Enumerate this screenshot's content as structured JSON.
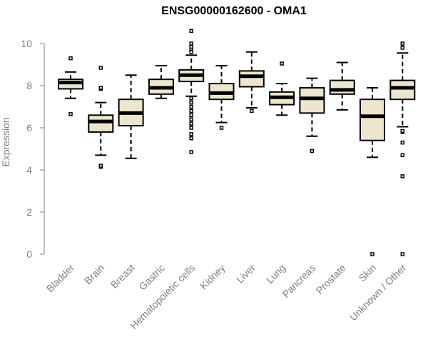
{
  "chart_data": {
    "type": "boxplot",
    "title": "ENSG00000162600 - OMA1",
    "ylabel": "Expression",
    "xlabel": "",
    "ylim": [
      0,
      10
    ],
    "yticks": [
      0,
      2,
      4,
      6,
      8,
      10
    ],
    "grid": false,
    "legend": "none",
    "colors": {
      "box_fill": "#ede6cf",
      "stroke": "#000000",
      "axis": "#808080"
    },
    "categories": [
      "Bladder",
      "Brain",
      "Breast",
      "Gastric",
      "Hematopoietic cells",
      "Kidney",
      "Liver",
      "Lung",
      "Pancreas",
      "Prostate",
      "Skin",
      "Unknown / Other"
    ],
    "boxes": [
      {
        "category": "Bladder",
        "whisker_low": 7.4,
        "q1": 7.85,
        "median": 8.15,
        "q3": 8.3,
        "whisker_high": 8.65,
        "outliers": [
          6.65,
          9.3
        ]
      },
      {
        "category": "Brain",
        "whisker_low": 4.7,
        "q1": 5.8,
        "median": 6.3,
        "q3": 6.6,
        "whisker_high": 7.2,
        "outliers": [
          4.15,
          4.2,
          7.85,
          7.9,
          8.85
        ]
      },
      {
        "category": "Breast",
        "whisker_low": 4.55,
        "q1": 6.1,
        "median": 6.7,
        "q3": 7.35,
        "whisker_high": 8.5,
        "outliers": []
      },
      {
        "category": "Gastric",
        "whisker_low": 7.4,
        "q1": 7.6,
        "median": 7.9,
        "q3": 8.3,
        "whisker_high": 8.95,
        "outliers": []
      },
      {
        "category": "Hematopoietic cells",
        "whisker_low": 7.5,
        "q1": 8.2,
        "median": 8.5,
        "q3": 8.75,
        "whisker_high": 9.45,
        "outliers": [
          4.85,
          5.5,
          5.7,
          6.0,
          6.2,
          6.4,
          6.6,
          6.8,
          7.0,
          7.2,
          7.4,
          9.6,
          9.75,
          9.85,
          10.0,
          10.6
        ]
      },
      {
        "category": "Kidney",
        "whisker_low": 6.25,
        "q1": 7.35,
        "median": 7.65,
        "q3": 8.1,
        "whisker_high": 8.95,
        "outliers": [
          6.0
        ]
      },
      {
        "category": "Liver",
        "whisker_low": 6.95,
        "q1": 7.95,
        "median": 8.45,
        "q3": 8.7,
        "whisker_high": 9.6,
        "outliers": [
          6.8
        ]
      },
      {
        "category": "Lung",
        "whisker_low": 6.6,
        "q1": 7.1,
        "median": 7.45,
        "q3": 7.7,
        "whisker_high": 8.1,
        "outliers": [
          9.05
        ]
      },
      {
        "category": "Pancreas",
        "whisker_low": 5.6,
        "q1": 6.7,
        "median": 7.4,
        "q3": 7.9,
        "whisker_high": 8.35,
        "outliers": [
          4.9
        ]
      },
      {
        "category": "Prostate",
        "whisker_low": 6.85,
        "q1": 7.6,
        "median": 7.8,
        "q3": 8.25,
        "whisker_high": 9.1,
        "outliers": []
      },
      {
        "category": "Skin",
        "whisker_low": 4.6,
        "q1": 5.4,
        "median": 6.55,
        "q3": 7.35,
        "whisker_high": 7.9,
        "outliers": [
          0.0
        ]
      },
      {
        "category": "Unknown / Other",
        "whisker_low": 6.05,
        "q1": 7.35,
        "median": 7.9,
        "q3": 8.25,
        "whisker_high": 9.55,
        "outliers": [
          0.0,
          3.7,
          4.7,
          5.3,
          5.8,
          5.85,
          9.8,
          10.0
        ]
      }
    ]
  }
}
